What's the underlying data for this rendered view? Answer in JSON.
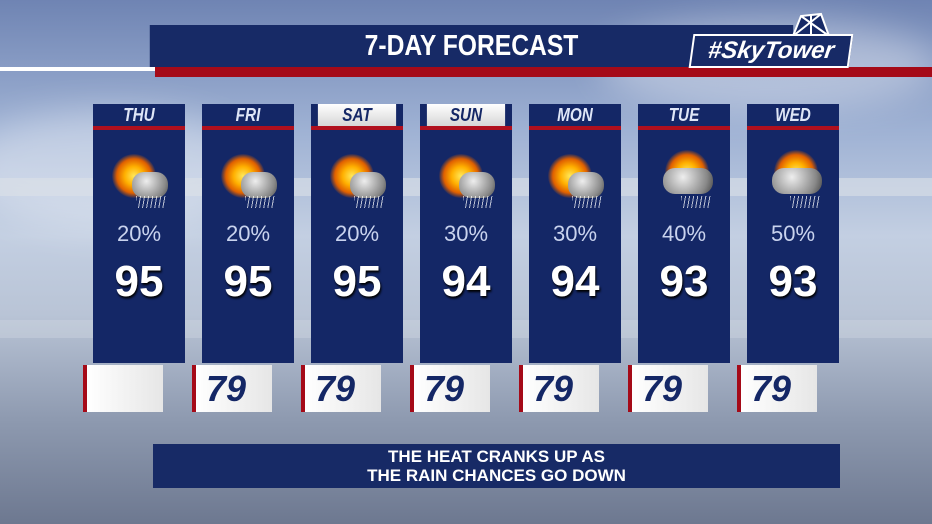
{
  "header": {
    "title": "7-DAY FORECAST",
    "logo_text": "#SkyTower"
  },
  "days": [
    {
      "day": "THU",
      "weekend": false,
      "icon": "sun-cloud-thunderstorm-icon",
      "rain_chance": "20%",
      "high": "95",
      "low": ""
    },
    {
      "day": "FRI",
      "weekend": false,
      "icon": "sun-cloud-thunderstorm-icon",
      "rain_chance": "20%",
      "high": "95",
      "low": "79"
    },
    {
      "day": "SAT",
      "weekend": true,
      "icon": "sun-cloud-thunderstorm-icon",
      "rain_chance": "20%",
      "high": "95",
      "low": "79"
    },
    {
      "day": "SUN",
      "weekend": true,
      "icon": "sun-cloud-thunderstorm-icon",
      "rain_chance": "30%",
      "high": "94",
      "low": "79"
    },
    {
      "day": "MON",
      "weekend": false,
      "icon": "sun-cloud-rain-icon",
      "rain_chance": "30%",
      "high": "94",
      "low": "79"
    },
    {
      "day": "TUE",
      "weekend": false,
      "icon": "cloud-sun-rain-icon",
      "rain_chance": "40%",
      "high": "93",
      "low": "79"
    },
    {
      "day": "WED",
      "weekend": false,
      "icon": "cloud-sun-storm-icon",
      "rain_chance": "50%",
      "high": "93",
      "low": "79"
    }
  ],
  "caption": {
    "line1": "THE HEAT CRANKS UP AS",
    "line2": "THE RAIN CHANCES GO DOWN"
  },
  "colors": {
    "navy": "#172a66",
    "red": "#a50a18"
  }
}
